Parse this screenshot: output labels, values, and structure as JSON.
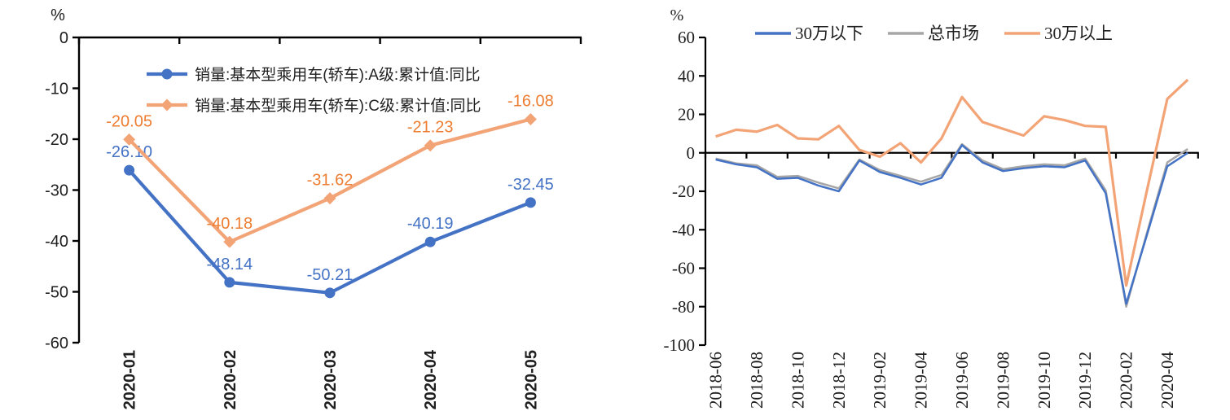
{
  "colors": {
    "series_blue": "#4472C4",
    "series_orange": "#F2A477",
    "series_gray": "#A6A6A6",
    "label_blue": "#4472C4",
    "label_orange": "#ED7D31",
    "axis": "#000000",
    "text": "#1F1F1F"
  },
  "chart_data": [
    {
      "type": "line",
      "title": "",
      "unit_label": "%",
      "categories": [
        "2020-01",
        "2020-02",
        "2020-03",
        "2020-04",
        "2020-05"
      ],
      "ylim": [
        -60,
        0
      ],
      "ytick_labels": [
        "0",
        "-10",
        "-20",
        "-30",
        "-40",
        "-50",
        "-60"
      ],
      "yticks": [
        0,
        -10,
        -20,
        -30,
        -40,
        -50,
        -60
      ],
      "grid": false,
      "legend_position": "inside-top-left",
      "series": [
        {
          "name": "销量:基本型乘用车(轿车):A级:累计值:同比",
          "color_key": "series_blue",
          "label_color_key": "label_blue",
          "marker": "circle",
          "values": [
            -26.1,
            -48.14,
            -50.21,
            -40.19,
            -32.45
          ],
          "labels": [
            "-26.10",
            "-48.14",
            "-50.21",
            "-40.19",
            "-32.45"
          ]
        },
        {
          "name": "销量:基本型乘用车(轿车):C级:累计值:同比",
          "color_key": "series_orange",
          "label_color_key": "label_orange",
          "marker": "diamond",
          "values": [
            -20.05,
            -40.18,
            -31.62,
            -21.23,
            -16.08
          ],
          "labels": [
            "-20.05",
            "-40.18",
            "-31.62",
            "-21.23",
            "-16.08"
          ]
        }
      ]
    },
    {
      "type": "line",
      "title": "",
      "unit_label": "%",
      "categories": [
        "2018-06",
        "2018-07",
        "2018-08",
        "2018-09",
        "2018-10",
        "2018-11",
        "2018-12",
        "2019-01",
        "2019-02",
        "2019-03",
        "2019-04",
        "2019-05",
        "2019-06",
        "2019-07",
        "2019-08",
        "2019-09",
        "2019-10",
        "2019-11",
        "2019-12",
        "2020-01",
        "2020-02",
        "2020-03",
        "2020-04",
        "2020-05"
      ],
      "xtick_labels": [
        "2018-06",
        "2018-08",
        "2018-10",
        "2018-12",
        "2019-02",
        "2019-04",
        "2019-06",
        "2019-08",
        "2019-10",
        "2019-12",
        "2020-02",
        "2020-04"
      ],
      "xtick_every": 2,
      "ylim": [
        -100,
        60
      ],
      "ytick_labels": [
        "60",
        "40",
        "20",
        "0",
        "-20",
        "-40",
        "-60",
        "-80",
        "-100"
      ],
      "yticks": [
        60,
        40,
        20,
        0,
        -20,
        -40,
        -60,
        -80,
        -100
      ],
      "grid": false,
      "legend_position": "top",
      "series": [
        {
          "name": "30万以下",
          "color_key": "series_blue",
          "marker": "none",
          "values": [
            -3.5,
            -6,
            -7.5,
            -13.5,
            -13,
            -17,
            -20,
            -4,
            -10,
            -13,
            -16.5,
            -13,
            4,
            -5,
            -9.5,
            -8,
            -7,
            -7.5,
            -4,
            -21,
            -78.5,
            -43,
            -7,
            0
          ]
        },
        {
          "name": "总市场",
          "color_key": "series_gray",
          "marker": "none",
          "values": [
            -3,
            -5.5,
            -6.5,
            -12.5,
            -12,
            -15.5,
            -18.5,
            -3.5,
            -9,
            -12,
            -15,
            -11.5,
            4.5,
            -4,
            -8.5,
            -7,
            -6,
            -6.5,
            -3,
            -19.5,
            -80,
            -42,
            -5,
            2
          ]
        },
        {
          "name": "30万以上",
          "color_key": "series_orange",
          "marker": "none",
          "values": [
            8.5,
            12,
            11,
            14.5,
            7.5,
            7,
            14,
            1.5,
            -2,
            5,
            -5,
            7.5,
            29,
            16,
            12.5,
            9,
            19,
            17,
            14,
            13.5,
            -69,
            -20,
            28,
            38
          ]
        }
      ]
    }
  ]
}
